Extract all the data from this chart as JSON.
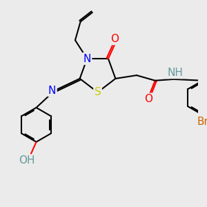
{
  "bg_color": "#ebebeb",
  "bond_color": "#000000",
  "bond_lw": 1.5,
  "atom_colors": {
    "N": "#0000ff",
    "O": "#ff0000",
    "S": "#cccc00",
    "Br": "#cc6600",
    "H_teal": "#669999",
    "C": "#000000"
  },
  "font_size_atom": 11,
  "font_size_small": 9
}
